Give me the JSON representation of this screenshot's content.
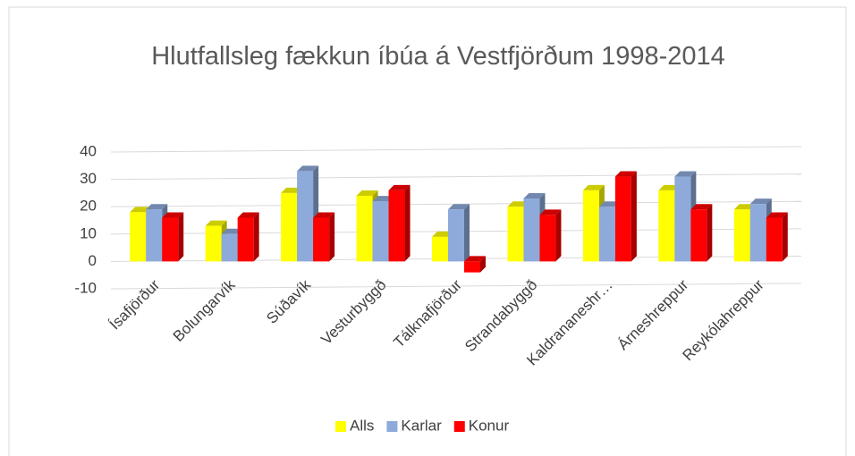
{
  "chart_data": {
    "type": "bar3d",
    "title": "Hlutfallsleg fækkun íbúa á Vestfjörðum 1998-2014",
    "categories": [
      "Ísafjörður",
      "Bolungarvík",
      "Súðavík",
      "Vesturbyggð",
      "Tálknafjörður",
      "Strandabyggð",
      "Kaldrananeshr…",
      "Árneshreppur",
      "Reykólahreppur"
    ],
    "series": [
      {
        "name": "Alls",
        "color": "#ffff00",
        "values": [
          18,
          13,
          25,
          24,
          9,
          20,
          26,
          26,
          19
        ]
      },
      {
        "name": "Karlar",
        "color": "#8eaadb",
        "values": [
          19,
          10,
          33,
          22,
          19,
          23,
          20,
          31,
          21
        ]
      },
      {
        "name": "Konur",
        "color": "#ff0000",
        "values": [
          16,
          16,
          16,
          26,
          -4,
          17,
          31,
          19,
          16
        ]
      }
    ],
    "ylim": [
      -10,
      40
    ],
    "yticks": [
      -10,
      0,
      10,
      20,
      30,
      40
    ],
    "grid": true,
    "legend": "bottom"
  }
}
